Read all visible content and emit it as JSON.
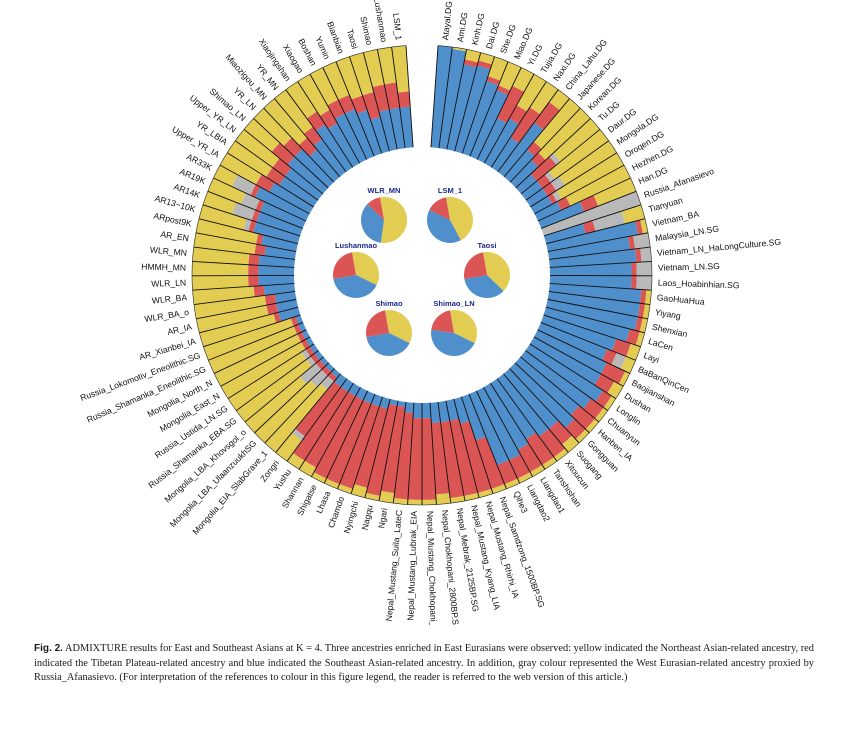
{
  "chart_data": {
    "type": "circular_stacked_bar",
    "title": "ADMIXTURE results for East and Southeast Asians at K = 4",
    "components": [
      {
        "name": "Northeast Asian-related",
        "color": "#e3cc52"
      },
      {
        "name": "Tibetan Plateau-related",
        "color": "#dc5555"
      },
      {
        "name": "Southeast Asian-related",
        "color": "#4f8fcc"
      },
      {
        "name": "West Eurasian-related",
        "color": "#b9b9b9"
      }
    ],
    "populations": [
      {
        "name": "Atayal.DG",
        "y": 0.0,
        "r": 0.0,
        "b": 1.0,
        "g": 0.0
      },
      {
        "name": "Ami.DG",
        "y": 0.02,
        "r": 0.0,
        "b": 0.98,
        "g": 0.0
      },
      {
        "name": "Kinh.DG",
        "y": 0.1,
        "r": 0.05,
        "b": 0.85,
        "g": 0.0
      },
      {
        "name": "Dai.DG",
        "y": 0.08,
        "r": 0.05,
        "b": 0.87,
        "g": 0.0
      },
      {
        "name": "She.DG",
        "y": 0.2,
        "r": 0.05,
        "b": 0.75,
        "g": 0.0
      },
      {
        "name": "Miao.DG",
        "y": 0.25,
        "r": 0.05,
        "b": 0.7,
        "g": 0.0
      },
      {
        "name": "Yi.DG",
        "y": 0.2,
        "r": 0.35,
        "b": 0.45,
        "g": 0.0
      },
      {
        "name": "Tujia.DG",
        "y": 0.35,
        "r": 0.15,
        "b": 0.5,
        "g": 0.0
      },
      {
        "name": "Naxi.DG",
        "y": 0.3,
        "r": 0.35,
        "b": 0.35,
        "g": 0.0
      },
      {
        "name": "China_Lahu.DG",
        "y": 0.15,
        "r": 0.25,
        "b": 0.6,
        "g": 0.0
      },
      {
        "name": "Japanese.DG",
        "y": 0.55,
        "r": 0.1,
        "b": 0.35,
        "g": 0.0
      },
      {
        "name": "Korean.DG",
        "y": 0.6,
        "r": 0.1,
        "b": 0.3,
        "g": 0.0
      },
      {
        "name": "Tu.DG",
        "y": 0.5,
        "r": 0.25,
        "b": 0.2,
        "g": 0.05
      },
      {
        "name": "Daur.DG",
        "y": 0.65,
        "r": 0.1,
        "b": 0.2,
        "g": 0.05
      },
      {
        "name": "Mongola.DG",
        "y": 0.6,
        "r": 0.1,
        "b": 0.2,
        "g": 0.1
      },
      {
        "name": "Oroqen.DG",
        "y": 0.7,
        "r": 0.05,
        "b": 0.2,
        "g": 0.05
      },
      {
        "name": "Hezhen.DG",
        "y": 0.65,
        "r": 0.1,
        "b": 0.25,
        "g": 0.0
      },
      {
        "name": "Han.DG",
        "y": 0.4,
        "r": 0.15,
        "b": 0.45,
        "g": 0.0
      },
      {
        "name": "Russia_Afanasievo",
        "y": 0.0,
        "r": 0.0,
        "b": 0.0,
        "g": 1.0
      },
      {
        "name": "Tianyuan",
        "y": 0.2,
        "r": 0.1,
        "b": 0.4,
        "g": 0.3
      },
      {
        "name": "Vietnam_BA",
        "y": 0.05,
        "r": 0.05,
        "b": 0.9,
        "g": 0.0
      },
      {
        "name": "Malaysia_LN.SG",
        "y": 0.0,
        "r": 0.05,
        "b": 0.8,
        "g": 0.15
      },
      {
        "name": "Vietnam_LN_HaLongCulture.SG",
        "y": 0.0,
        "r": 0.05,
        "b": 0.85,
        "g": 0.1
      },
      {
        "name": "Vietnam_LN.SG",
        "y": 0.0,
        "r": 0.05,
        "b": 0.8,
        "g": 0.15
      },
      {
        "name": "Laos_Hoabinhian.SG",
        "y": 0.0,
        "r": 0.05,
        "b": 0.8,
        "g": 0.15
      },
      {
        "name": "GaoHuaHua",
        "y": 0.05,
        "r": 0.05,
        "b": 0.9,
        "g": 0.0
      },
      {
        "name": "Yiyang",
        "y": 0.05,
        "r": 0.05,
        "b": 0.9,
        "g": 0.0
      },
      {
        "name": "Shenxian",
        "y": 0.05,
        "r": 0.05,
        "b": 0.9,
        "g": 0.0
      },
      {
        "name": "LaCen",
        "y": 0.05,
        "r": 0.1,
        "b": 0.85,
        "g": 0.0
      },
      {
        "name": "Layi",
        "y": 0.1,
        "r": 0.15,
        "b": 0.75,
        "g": 0.0
      },
      {
        "name": "BaBanQinCen",
        "y": 0.1,
        "r": 0.1,
        "b": 0.7,
        "g": 0.1
      },
      {
        "name": "Baojianshan",
        "y": 0.05,
        "r": 0.2,
        "b": 0.75,
        "g": 0.0
      },
      {
        "name": "Dushan",
        "y": 0.1,
        "r": 0.15,
        "b": 0.75,
        "g": 0.0
      },
      {
        "name": "Longlin",
        "y": 0.05,
        "r": 0.1,
        "b": 0.85,
        "g": 0.0
      },
      {
        "name": "Chuanyun",
        "y": 0.05,
        "r": 0.15,
        "b": 0.8,
        "g": 0.0
      },
      {
        "name": "Hanben_IA",
        "y": 0.05,
        "r": 0.2,
        "b": 0.75,
        "g": 0.0
      },
      {
        "name": "Gongguan",
        "y": 0.05,
        "r": 0.15,
        "b": 0.8,
        "g": 0.0
      },
      {
        "name": "Suogang",
        "y": 0.1,
        "r": 0.2,
        "b": 0.7,
        "g": 0.0
      },
      {
        "name": "Xitoucun",
        "y": 0.05,
        "r": 0.25,
        "b": 0.7,
        "g": 0.0
      },
      {
        "name": "Tanshishan",
        "y": 0.05,
        "r": 0.3,
        "b": 0.65,
        "g": 0.0
      },
      {
        "name": "Liangdao1",
        "y": 0.05,
        "r": 0.25,
        "b": 0.7,
        "g": 0.0
      },
      {
        "name": "Liangdao2",
        "y": 0.05,
        "r": 0.2,
        "b": 0.75,
        "g": 0.0
      },
      {
        "name": "Qihe3",
        "y": 0.05,
        "r": 0.2,
        "b": 0.75,
        "g": 0.0
      },
      {
        "name": "Nepal_Samdzong_1500BP.SG",
        "y": 0.05,
        "r": 0.5,
        "b": 0.45,
        "g": 0.0
      },
      {
        "name": "Nepal_Mustang_Rhirhi_IA",
        "y": 0.05,
        "r": 0.7,
        "b": 0.25,
        "g": 0.0
      },
      {
        "name": "Nepal_Mustang_Kyang_LIA",
        "y": 0.05,
        "r": 0.75,
        "b": 0.2,
        "g": 0.0
      },
      {
        "name": "Nepal_Mebrak_2125BP.SG",
        "y": 0.05,
        "r": 0.75,
        "b": 0.2,
        "g": 0.0
      },
      {
        "name": "Nepal_Chokhopani_2800BP.SG",
        "y": 0.1,
        "r": 0.7,
        "b": 0.2,
        "g": 0.0
      },
      {
        "name": "Nepal_Mustang_Chokhopani_IA",
        "y": 0.05,
        "r": 0.8,
        "b": 0.15,
        "g": 0.0
      },
      {
        "name": "Nepal_Mustang_Lubrak_EIA",
        "y": 0.05,
        "r": 0.8,
        "b": 0.15,
        "g": 0.0
      },
      {
        "name": "Nepal_Mustang_Suila_LateC",
        "y": 0.05,
        "r": 0.85,
        "b": 0.1,
        "g": 0.0
      },
      {
        "name": "Ngari",
        "y": 0.1,
        "r": 0.85,
        "b": 0.05,
        "g": 0.0
      },
      {
        "name": "Nagqu",
        "y": 0.05,
        "r": 0.9,
        "b": 0.05,
        "g": 0.0
      },
      {
        "name": "Nyingchi",
        "y": 0.1,
        "r": 0.8,
        "b": 0.1,
        "g": 0.0
      },
      {
        "name": "Chamdo",
        "y": 0.05,
        "r": 0.85,
        "b": 0.1,
        "g": 0.0
      },
      {
        "name": "Lhasa",
        "y": 0.05,
        "r": 0.85,
        "b": 0.1,
        "g": 0.0
      },
      {
        "name": "Shigatse",
        "y": 0.05,
        "r": 0.85,
        "b": 0.1,
        "g": 0.0
      },
      {
        "name": "Shannan",
        "y": 0.1,
        "r": 0.8,
        "b": 0.1,
        "g": 0.0
      },
      {
        "name": "Yushu",
        "y": 0.1,
        "r": 0.8,
        "b": 0.1,
        "g": 0.0
      },
      {
        "name": "Zongri",
        "y": 0.25,
        "r": 0.6,
        "b": 0.1,
        "g": 0.05
      },
      {
        "name": "Mongolia_EIA_SlabGrave_1",
        "y": 0.8,
        "r": 0.05,
        "b": 0.05,
        "g": 0.1
      },
      {
        "name": "Mongolia_LBA_UlaanzuukhSG",
        "y": 0.75,
        "r": 0.05,
        "b": 0.05,
        "g": 0.15
      },
      {
        "name": "Mongolia_LBA_Khovsgol_o",
        "y": 0.7,
        "r": 0.05,
        "b": 0.05,
        "g": 0.2
      },
      {
        "name": "Russia_Shamanka_EBA.SG",
        "y": 0.85,
        "r": 0.05,
        "b": 0.05,
        "g": 0.05
      },
      {
        "name": "Russia_Ustida_LN.SG",
        "y": 0.85,
        "r": 0.05,
        "b": 0.05,
        "g": 0.05
      },
      {
        "name": "Mongolia_East_N",
        "y": 0.9,
        "r": 0.05,
        "b": 0.05,
        "g": 0.0
      },
      {
        "name": "Mongolia_North_N",
        "y": 0.9,
        "r": 0.05,
        "b": 0.05,
        "g": 0.0
      },
      {
        "name": "Russia_Shamanka_Eneolithic.SG",
        "y": 0.9,
        "r": 0.05,
        "b": 0.05,
        "g": 0.0
      },
      {
        "name": "Russia_Lokomotiv_Eneolithic.SG",
        "y": 0.9,
        "r": 0.05,
        "b": 0.05,
        "g": 0.0
      },
      {
        "name": "AR_Xianbei_IA",
        "y": 0.75,
        "r": 0.05,
        "b": 0.2,
        "g": 0.0
      },
      {
        "name": "AR_IA",
        "y": 0.7,
        "r": 0.1,
        "b": 0.2,
        "g": 0.0
      },
      {
        "name": "WLR_BA_o",
        "y": 0.7,
        "r": 0.1,
        "b": 0.2,
        "g": 0.0
      },
      {
        "name": "WLR_BA",
        "y": 0.6,
        "r": 0.1,
        "b": 0.3,
        "g": 0.0
      },
      {
        "name": "WLR_LN",
        "y": 0.55,
        "r": 0.1,
        "b": 0.35,
        "g": 0.0
      },
      {
        "name": "HMMH_MN",
        "y": 0.55,
        "r": 0.1,
        "b": 0.35,
        "g": 0.0
      },
      {
        "name": "WLR_MN",
        "y": 0.55,
        "r": 0.1,
        "b": 0.35,
        "g": 0.0
      },
      {
        "name": "AR_EN",
        "y": 0.6,
        "r": 0.1,
        "b": 0.3,
        "g": 0.0
      },
      {
        "name": "ARpost9K",
        "y": 0.6,
        "r": 0.05,
        "b": 0.35,
        "g": 0.0
      },
      {
        "name": "AR13~10K",
        "y": 0.45,
        "r": 0.05,
        "b": 0.45,
        "g": 0.05
      },
      {
        "name": "AR14K",
        "y": 0.3,
        "r": 0.05,
        "b": 0.45,
        "g": 0.2
      },
      {
        "name": "AR19K",
        "y": 0.35,
        "r": 0.05,
        "b": 0.45,
        "g": 0.15
      },
      {
        "name": "AR33K",
        "y": 0.2,
        "r": 0.05,
        "b": 0.55,
        "g": 0.2
      },
      {
        "name": "Upper_YR_IA",
        "y": 0.4,
        "r": 0.15,
        "b": 0.45,
        "g": 0.0
      },
      {
        "name": "YR_LBIA",
        "y": 0.45,
        "r": 0.15,
        "b": 0.4,
        "g": 0.0
      },
      {
        "name": "Upper_YR_LN",
        "y": 0.45,
        "r": 0.15,
        "b": 0.4,
        "g": 0.0
      },
      {
        "name": "Shimao_LN",
        "y": 0.35,
        "r": 0.2,
        "b": 0.45,
        "g": 0.0
      },
      {
        "name": "YR_LN",
        "y": 0.4,
        "r": 0.15,
        "b": 0.45,
        "g": 0.0
      },
      {
        "name": "Miaozigou_MN",
        "y": 0.5,
        "r": 0.15,
        "b": 0.35,
        "g": 0.0
      },
      {
        "name": "YR_MN",
        "y": 0.45,
        "r": 0.15,
        "b": 0.4,
        "g": 0.0
      },
      {
        "name": "Xiaojingshan",
        "y": 0.35,
        "r": 0.15,
        "b": 0.5,
        "g": 0.0
      },
      {
        "name": "Xiaogao",
        "y": 0.4,
        "r": 0.15,
        "b": 0.45,
        "g": 0.0
      },
      {
        "name": "Boshan",
        "y": 0.35,
        "r": 0.15,
        "b": 0.5,
        "g": 0.0
      },
      {
        "name": "Yumin",
        "y": 0.35,
        "r": 0.15,
        "b": 0.5,
        "g": 0.0
      },
      {
        "name": "Bianbian",
        "y": 0.4,
        "r": 0.15,
        "b": 0.45,
        "g": 0.0
      },
      {
        "name": "Taosi",
        "y": 0.4,
        "r": 0.25,
        "b": 0.35,
        "g": 0.0
      },
      {
        "name": "Shimao",
        "y": 0.35,
        "r": 0.25,
        "b": 0.4,
        "g": 0.0
      },
      {
        "name": "Lushanmao",
        "y": 0.35,
        "r": 0.25,
        "b": 0.4,
        "g": 0.0
      },
      {
        "name": "LSM_1",
        "y": 0.45,
        "r": 0.15,
        "b": 0.4,
        "g": 0.0
      }
    ],
    "pies": [
      {
        "name": "WLR_MN",
        "y": 0.55,
        "r": 0.1,
        "b": 0.35,
        "g": 0.0
      },
      {
        "name": "LSM_1",
        "y": 0.45,
        "r": 0.15,
        "b": 0.4,
        "g": 0.0
      },
      {
        "name": "Lushanmao",
        "y": 0.35,
        "r": 0.25,
        "b": 0.4,
        "g": 0.0
      },
      {
        "name": "Taosi",
        "y": 0.4,
        "r": 0.25,
        "b": 0.35,
        "g": 0.0
      },
      {
        "name": "Shimao",
        "y": 0.35,
        "r": 0.25,
        "b": 0.4,
        "g": 0.0
      },
      {
        "name": "Shimao_LN",
        "y": 0.35,
        "r": 0.2,
        "b": 0.45,
        "g": 0.0
      }
    ]
  },
  "caption": {
    "label": "Fig. 2.",
    "text": "ADMIXTURE results for East and Southeast Asians at K = 4. Three ancestries enriched in East Eurasians were observed: yellow indicated the Northeast Asian-related ancestry, red indicated the Tibetan Plateau-related ancestry and blue indicated the Southeast Asian-related ancestry. In addition, gray colour represented the West Eurasian-related ancestry proxied by Russia_Afanasievo. (For interpretation of the references to colour in this figure legend, the reader is referred to the web version of this article.)"
  }
}
